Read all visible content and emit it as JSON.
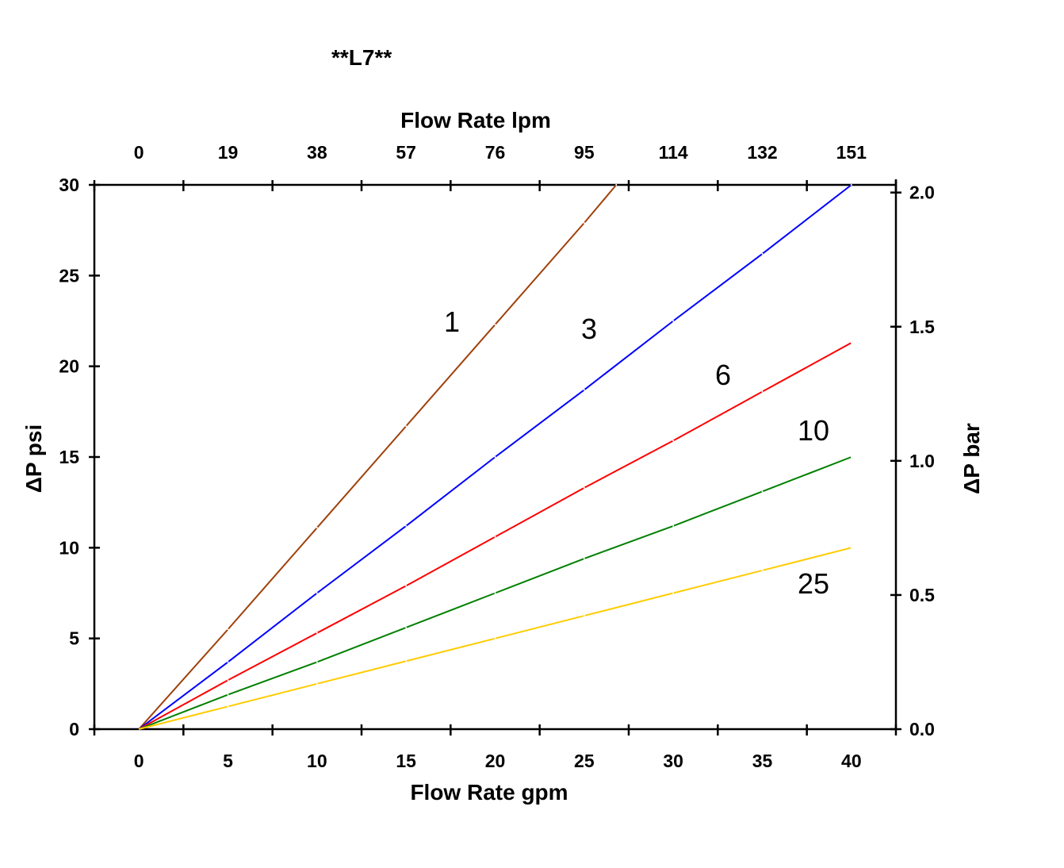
{
  "chart_data": {
    "type": "line",
    "title": "**L7**",
    "xlabel": "Flow Rate gpm",
    "x2label": "Flow Rate lpm",
    "ylabel": "ΔP psi",
    "y2label": "ΔP bar",
    "xlim": [
      -2.5,
      42.5
    ],
    "ylim": [
      0,
      30
    ],
    "y2lim": [
      0,
      2.07
    ],
    "x_ticks": [
      "0",
      "5",
      "10",
      "15",
      "20",
      "25",
      "30",
      "35",
      "40"
    ],
    "x2_ticks": [
      "0",
      "19",
      "38",
      "57",
      "76",
      "95",
      "114",
      "132",
      "151"
    ],
    "y_ticks": [
      "0",
      "5",
      "10",
      "15",
      "20",
      "25",
      "30"
    ],
    "y2_ticks": [
      "0.0",
      "0.5",
      "1.0",
      "1.5",
      "2.0"
    ],
    "grid": false,
    "series": [
      {
        "name": "1",
        "color": "#a0400a",
        "x": [
          0,
          5,
          10,
          15,
          20,
          25,
          26.8
        ],
        "y": [
          0,
          5.5,
          11.1,
          16.7,
          22.3,
          27.9,
          30
        ]
      },
      {
        "name": "3",
        "color": "#0000ff",
        "x": [
          0,
          5,
          10,
          15,
          20,
          25,
          30,
          35,
          40
        ],
        "y": [
          0,
          3.7,
          7.5,
          11.2,
          15,
          18.7,
          22.5,
          26.2,
          30
        ]
      },
      {
        "name": "6",
        "color": "#ff0000",
        "x": [
          0,
          5,
          10,
          15,
          20,
          25,
          30,
          35,
          40
        ],
        "y": [
          0,
          2.7,
          5.3,
          7.9,
          10.6,
          13.3,
          15.9,
          18.6,
          21.3
        ]
      },
      {
        "name": "10",
        "color": "#008000",
        "x": [
          0,
          5,
          10,
          15,
          20,
          25,
          30,
          35,
          40
        ],
        "y": [
          0,
          1.9,
          3.7,
          5.6,
          7.5,
          9.4,
          11.2,
          13.1,
          15
        ]
      },
      {
        "name": "25",
        "color": "#ffcc00",
        "x": [
          0,
          5,
          10,
          15,
          20,
          25,
          30,
          35,
          40
        ],
        "y": [
          0,
          1.25,
          2.5,
          3.75,
          5,
          6.25,
          7.5,
          8.75,
          10
        ]
      }
    ],
    "annotations": [
      "1",
      "3",
      "6",
      "10",
      "25"
    ]
  }
}
